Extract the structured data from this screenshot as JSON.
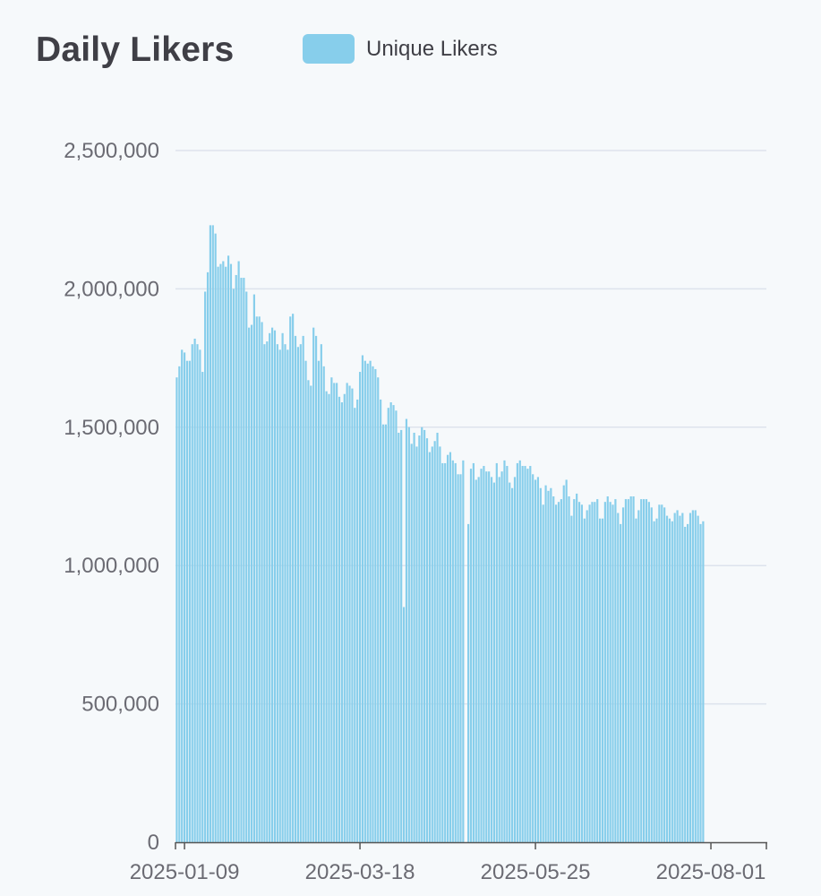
{
  "chart_data": {
    "type": "bar",
    "title": "Daily Likers",
    "legend": {
      "position": "top",
      "entries": [
        "Unique Likers"
      ]
    },
    "colors": {
      "bar": "#87ceeb",
      "bar_edge": "#7cc4e4",
      "grid": "#dde3ec",
      "axis": "#555555"
    },
    "grid": true,
    "xlabel": "",
    "ylabel": "",
    "ylim": [
      0,
      2500000
    ],
    "y_ticks": [
      "0",
      "500,000",
      "1,000,000",
      "1,500,000",
      "2,000,000",
      "2,500,000"
    ],
    "x_ticks": [
      "2025-01-09",
      "2025-03-18",
      "2025-05-25",
      "2025-08-01"
    ],
    "x_range": [
      "2025-01-06",
      "2025-08-22"
    ],
    "series": [
      {
        "name": "Unique Likers",
        "start_date": "2025-01-06",
        "values": [
          1680000,
          1720000,
          1780000,
          1770000,
          1740000,
          1740000,
          1800000,
          1820000,
          1800000,
          1780000,
          1700000,
          1990000,
          2060000,
          2230000,
          2230000,
          2200000,
          2080000,
          2090000,
          2100000,
          2080000,
          2120000,
          2090000,
          2000000,
          2050000,
          2100000,
          2040000,
          2040000,
          1990000,
          1860000,
          1870000,
          1980000,
          1900000,
          1900000,
          1880000,
          1800000,
          1810000,
          1840000,
          1860000,
          1850000,
          1800000,
          1780000,
          1840000,
          1800000,
          1780000,
          1900000,
          1910000,
          1830000,
          1790000,
          1800000,
          1830000,
          1740000,
          1670000,
          1650000,
          1860000,
          1830000,
          1740000,
          1800000,
          1720000,
          1630000,
          1620000,
          1680000,
          1660000,
          1660000,
          1610000,
          1590000,
          1620000,
          1660000,
          1650000,
          1640000,
          1570000,
          1600000,
          1700000,
          1760000,
          1740000,
          1730000,
          1740000,
          1720000,
          1710000,
          1680000,
          1600000,
          1510000,
          1510000,
          1570000,
          1590000,
          1580000,
          1560000,
          1480000,
          1490000,
          850000,
          1530000,
          1500000,
          1440000,
          1480000,
          1430000,
          1470000,
          1500000,
          1490000,
          1460000,
          1410000,
          1430000,
          1450000,
          1480000,
          1430000,
          1370000,
          1370000,
          1400000,
          1410000,
          1380000,
          1370000,
          1330000,
          1330000,
          1380000,
          0,
          1150000,
          1350000,
          1370000,
          1310000,
          1320000,
          1350000,
          1360000,
          1340000,
          1340000,
          1320000,
          1300000,
          1370000,
          1320000,
          1340000,
          1380000,
          1360000,
          1300000,
          1280000,
          1320000,
          1370000,
          1380000,
          1360000,
          1360000,
          1350000,
          1360000,
          1330000,
          1310000,
          1320000,
          1280000,
          1220000,
          1290000,
          1270000,
          1280000,
          1250000,
          1220000,
          1230000,
          1240000,
          1290000,
          1310000,
          1250000,
          1180000,
          1240000,
          1260000,
          1230000,
          1220000,
          1170000,
          1200000,
          1220000,
          1230000,
          1230000,
          1240000,
          1170000,
          1170000,
          1230000,
          1250000,
          1230000,
          1220000,
          1240000,
          1190000,
          1150000,
          1210000,
          1240000,
          1240000,
          1250000,
          1250000,
          1170000,
          1200000,
          1240000,
          1240000,
          1240000,
          1230000,
          1210000,
          1160000,
          1170000,
          1220000,
          1220000,
          1210000,
          1180000,
          1170000,
          1160000,
          1190000,
          1200000,
          1180000,
          1190000,
          1140000,
          1150000,
          1190000,
          1200000,
          1200000,
          1180000,
          1150000,
          1160000
        ]
      }
    ]
  }
}
